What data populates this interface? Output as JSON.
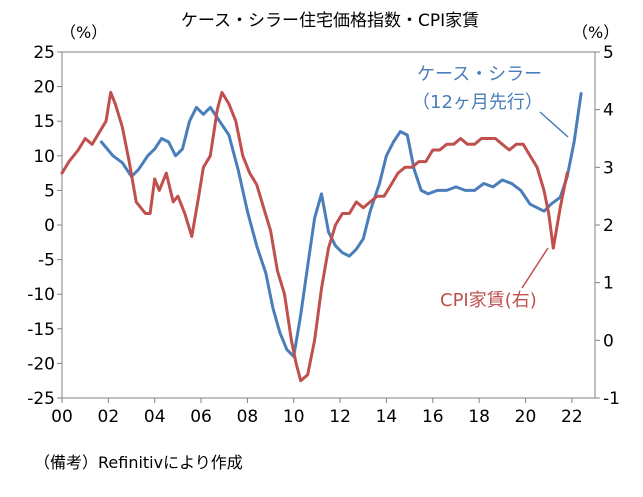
{
  "chart_data": {
    "type": "line",
    "title": "ケース・シラー住宅価格指数・CPI家賃",
    "left_unit": "（%）",
    "right_unit": "（%）",
    "source": "（備考）Refinitivにより作成",
    "x_ticks": [
      "00",
      "02",
      "04",
      "06",
      "08",
      "10",
      "12",
      "14",
      "16",
      "18",
      "20",
      "22"
    ],
    "x_range": [
      2000,
      2023
    ],
    "y_left_range": [
      -25,
      25
    ],
    "y_left_ticks": [
      "25",
      "20",
      "15",
      "10",
      "5",
      "0",
      "-5",
      "-10",
      "-15",
      "-20",
      "-25"
    ],
    "y_right_range": [
      -1,
      5
    ],
    "y_right_ticks": [
      "5",
      "4",
      "3",
      "2",
      "1",
      "0",
      "-1"
    ],
    "grid": false,
    "colors": {
      "case_shiller": "#4a7ebb",
      "cpi_rent": "#c0504d",
      "axis": "#808080"
    },
    "series": [
      {
        "name": "ケース・シラー",
        "name_note": "（12ヶ月先行）",
        "axis": "left",
        "x": [
          2001.7,
          2002.2,
          2002.6,
          2003.0,
          2003.3,
          2003.7,
          2004.0,
          2004.3,
          2004.6,
          2004.9,
          2005.2,
          2005.5,
          2005.8,
          2006.1,
          2006.4,
          2006.8,
          2007.2,
          2007.6,
          2008.0,
          2008.4,
          2008.8,
          2009.1,
          2009.4,
          2009.7,
          2010.0,
          2010.3,
          2010.6,
          2010.9,
          2011.2,
          2011.5,
          2011.8,
          2012.1,
          2012.4,
          2012.7,
          2013.0,
          2013.3,
          2013.7,
          2014.0,
          2014.3,
          2014.6,
          2014.9,
          2015.2,
          2015.5,
          2015.8,
          2016.2,
          2016.6,
          2017.0,
          2017.4,
          2017.8,
          2018.2,
          2018.6,
          2019.0,
          2019.4,
          2019.8,
          2020.2,
          2020.5,
          2020.8,
          2021.1,
          2021.5,
          2021.8,
          2022.1,
          2022.4
        ],
        "values": [
          12,
          10,
          9,
          7,
          8,
          10,
          11,
          12.5,
          12,
          10,
          11,
          15,
          17,
          16,
          17,
          15,
          13,
          8,
          2,
          -3,
          -7,
          -12,
          -15.5,
          -18,
          -19,
          -13,
          -6,
          1,
          4.5,
          -1,
          -3,
          -4,
          -4.5,
          -3.5,
          -2,
          2,
          6,
          10,
          12,
          13.5,
          13,
          8,
          5,
          4.5,
          5,
          5,
          5.5,
          5,
          5,
          6,
          5.5,
          6.5,
          6,
          5,
          3,
          2.5,
          2,
          3,
          4,
          7,
          12,
          19
        ]
      },
      {
        "name": "CPI家賃(右)",
        "axis": "right",
        "x": [
          2000.0,
          2000.3,
          2000.7,
          2001.0,
          2001.3,
          2001.6,
          2001.9,
          2002.1,
          2002.3,
          2002.6,
          2002.9,
          2003.2,
          2003.4,
          2003.6,
          2003.8,
          2004.0,
          2004.2,
          2004.5,
          2004.8,
          2005.0,
          2005.3,
          2005.6,
          2005.9,
          2006.1,
          2006.4,
          2006.7,
          2006.9,
          2007.2,
          2007.5,
          2007.8,
          2008.1,
          2008.4,
          2008.7,
          2009.0,
          2009.3,
          2009.6,
          2009.9,
          2010.1,
          2010.3,
          2010.6,
          2010.9,
          2011.2,
          2011.5,
          2011.8,
          2012.1,
          2012.4,
          2012.7,
          2013.0,
          2013.3,
          2013.6,
          2013.9,
          2014.2,
          2014.5,
          2014.8,
          2015.1,
          2015.4,
          2015.7,
          2016.0,
          2016.3,
          2016.6,
          2016.9,
          2017.2,
          2017.5,
          2017.8,
          2018.1,
          2018.4,
          2018.7,
          2019.0,
          2019.3,
          2019.6,
          2019.9,
          2020.2,
          2020.5,
          2020.8,
          2021.0,
          2021.2,
          2021.5,
          2021.8
        ],
        "values": [
          2.9,
          3.1,
          3.3,
          3.5,
          3.4,
          3.6,
          3.8,
          4.3,
          4.1,
          3.7,
          3.1,
          2.4,
          2.3,
          2.2,
          2.2,
          2.8,
          2.6,
          2.9,
          2.4,
          2.5,
          2.2,
          1.8,
          2.5,
          3.0,
          3.2,
          4.0,
          4.3,
          4.1,
          3.8,
          3.2,
          2.9,
          2.7,
          2.3,
          1.9,
          1.2,
          0.8,
          0.0,
          -0.4,
          -0.7,
          -0.6,
          0.0,
          0.9,
          1.6,
          2.0,
          2.2,
          2.2,
          2.4,
          2.3,
          2.4,
          2.5,
          2.5,
          2.7,
          2.9,
          3.0,
          3.0,
          3.1,
          3.1,
          3.3,
          3.3,
          3.4,
          3.4,
          3.5,
          3.4,
          3.4,
          3.5,
          3.5,
          3.5,
          3.4,
          3.3,
          3.4,
          3.4,
          3.2,
          3.0,
          2.6,
          2.2,
          1.6,
          2.3,
          2.9
        ]
      }
    ]
  }
}
